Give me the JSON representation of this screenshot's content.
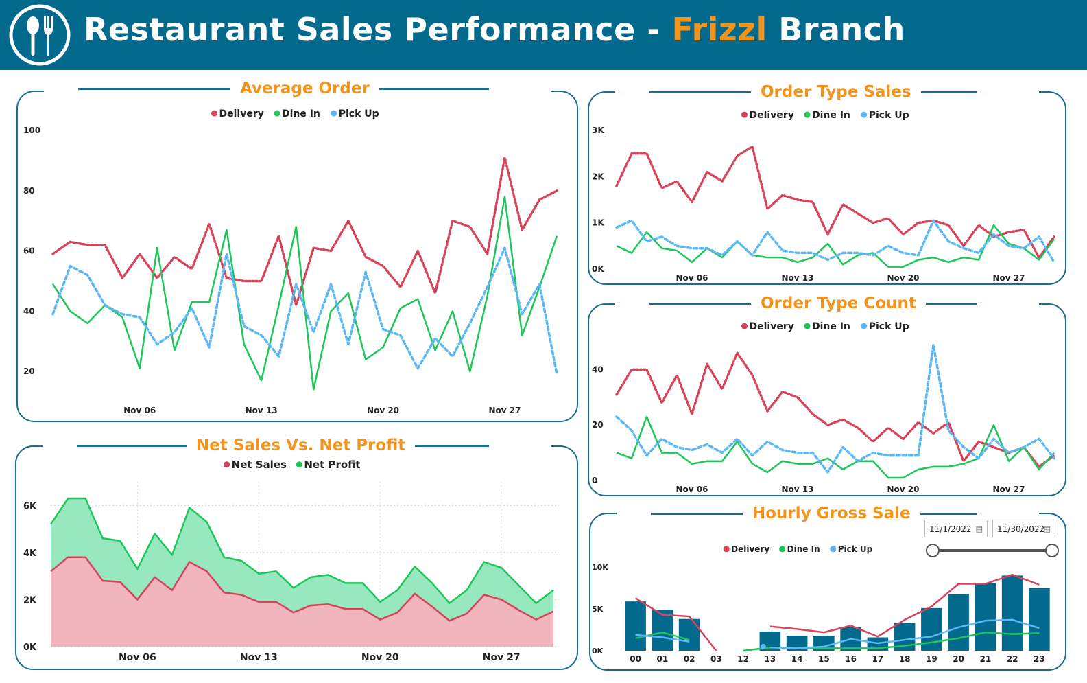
{
  "header": {
    "title_prefix": "Restaurant Sales Performance - ",
    "title_accent": "Frizzl",
    "title_suffix": " Branch",
    "bg_color": "#036a8e",
    "accent_color": "#f2941b",
    "logo_icon": "fork-spoon-icon"
  },
  "colors": {
    "delivery": "#d6435a",
    "dine_in": "#1ec65a",
    "pick_up": "#5bb8f5",
    "net_sales": "#d6435a",
    "net_profit": "#1ec65a",
    "bar": "#036a8e"
  },
  "chart_data": [
    {
      "id": "average_order",
      "type": "line",
      "title": "Average Order",
      "legend": [
        "Delivery",
        "Dine In",
        "Pick Up"
      ],
      "legend_position": "top",
      "ylim": [
        10,
        100
      ],
      "yticks": [
        20,
        40,
        60,
        80,
        100
      ],
      "x_tick_labels": [
        "Nov 06",
        "Nov 13",
        "Nov 20",
        "Nov 27"
      ],
      "x": [
        1,
        2,
        3,
        4,
        5,
        6,
        7,
        8,
        9,
        10,
        11,
        12,
        13,
        14,
        15,
        16,
        17,
        18,
        19,
        20,
        21,
        22,
        23,
        24,
        25,
        26,
        27,
        28,
        29,
        30
      ],
      "series": [
        {
          "name": "Delivery",
          "style": "dotted",
          "values": [
            59,
            63,
            62,
            62,
            51,
            59,
            51,
            58,
            54,
            69,
            51,
            50,
            50,
            65,
            42,
            61,
            60,
            70,
            58,
            55,
            48,
            60,
            46,
            70,
            68,
            59,
            91,
            67,
            77,
            80
          ]
        },
        {
          "name": "Dine In",
          "style": "solid",
          "values": [
            49,
            40,
            36,
            42,
            38,
            21,
            61,
            27,
            43,
            43,
            67,
            29,
            17,
            42,
            68,
            14,
            40,
            46,
            24,
            28,
            41,
            44,
            27,
            40,
            20,
            45,
            78,
            32,
            48,
            65
          ]
        },
        {
          "name": "Pick Up",
          "style": "dashed",
          "values": [
            39,
            55,
            52,
            42,
            39,
            38,
            29,
            33,
            41,
            28,
            59,
            35,
            32,
            25,
            49,
            33,
            49,
            29,
            53,
            34,
            32,
            21,
            31,
            25,
            36,
            48,
            61,
            39,
            49,
            19
          ]
        }
      ]
    },
    {
      "id": "order_type_sales",
      "type": "line",
      "title": "Order Type Sales",
      "legend": [
        "Delivery",
        "Dine In",
        "Pick Up"
      ],
      "legend_position": "top",
      "ylim": [
        0,
        3000
      ],
      "yticks": [
        "0K",
        "1K",
        "2K",
        "3K"
      ],
      "x_tick_labels": [
        "Nov 06",
        "Nov 13",
        "Nov 20",
        "Nov 27"
      ],
      "x": [
        1,
        2,
        3,
        4,
        5,
        6,
        7,
        8,
        9,
        10,
        11,
        12,
        13,
        14,
        15,
        16,
        17,
        18,
        19,
        20,
        21,
        22,
        23,
        24,
        25,
        26,
        27,
        28,
        29,
        30
      ],
      "series": [
        {
          "name": "Delivery",
          "style": "dotted",
          "values": [
            1800,
            2500,
            2500,
            1750,
            1900,
            1450,
            2100,
            1900,
            2450,
            2650,
            1300,
            1600,
            1500,
            1450,
            750,
            1400,
            1200,
            1000,
            1100,
            750,
            1000,
            1050,
            950,
            500,
            950,
            700,
            800,
            850,
            250,
            700
          ]
        },
        {
          "name": "Dine In",
          "style": "solid",
          "values": [
            500,
            350,
            800,
            450,
            400,
            150,
            450,
            250,
            600,
            300,
            250,
            250,
            150,
            250,
            550,
            100,
            300,
            350,
            50,
            50,
            200,
            250,
            150,
            250,
            200,
            950,
            550,
            450,
            200,
            650
          ]
        },
        {
          "name": "Pick Up",
          "style": "dashed",
          "values": [
            900,
            1050,
            600,
            700,
            500,
            450,
            450,
            300,
            600,
            300,
            800,
            400,
            350,
            350,
            200,
            350,
            350,
            300,
            500,
            350,
            300,
            1050,
            600,
            450,
            350,
            750,
            500,
            450,
            700,
            150
          ]
        }
      ]
    },
    {
      "id": "order_type_count",
      "type": "line",
      "title": "Order Type Count",
      "legend": [
        "Delivery",
        "Dine In",
        "Pick Up"
      ],
      "legend_position": "top",
      "ylim": [
        0,
        50
      ],
      "yticks": [
        0,
        20,
        40
      ],
      "x_tick_labels": [
        "Nov 06",
        "Nov 13",
        "Nov 20",
        "Nov 27"
      ],
      "x": [
        1,
        2,
        3,
        4,
        5,
        6,
        7,
        8,
        9,
        10,
        11,
        12,
        13,
        14,
        15,
        16,
        17,
        18,
        19,
        20,
        21,
        22,
        23,
        24,
        25,
        26,
        27,
        28,
        29,
        30
      ],
      "series": [
        {
          "name": "Delivery",
          "style": "dotted",
          "values": [
            31,
            40,
            40,
            28,
            38,
            24,
            42,
            33,
            46,
            38,
            25,
            32,
            30,
            24,
            20,
            22,
            19,
            14,
            19,
            15,
            21,
            17,
            21,
            7,
            14,
            12,
            10,
            12,
            5,
            9
          ]
        },
        {
          "name": "Dine In",
          "style": "solid",
          "values": [
            10,
            8,
            23,
            10,
            10,
            6,
            7,
            7,
            14,
            6,
            3,
            7,
            6,
            6,
            8,
            4,
            7,
            7,
            1,
            1,
            4,
            5,
            5,
            6,
            8,
            20,
            7,
            12,
            4,
            10
          ]
        },
        {
          "name": "Pick Up",
          "style": "dashed",
          "values": [
            23,
            18,
            9,
            15,
            12,
            11,
            13,
            10,
            15,
            9,
            14,
            11,
            10,
            10,
            3,
            12,
            7,
            10,
            9,
            9,
            9,
            49,
            18,
            12,
            8,
            15,
            10,
            12,
            15,
            8
          ]
        }
      ]
    },
    {
      "id": "net_sales_vs_net_profit",
      "type": "area",
      "title": "Net Sales Vs. Net Profit",
      "legend": [
        "Net Sales",
        "Net Profit"
      ],
      "legend_position": "top",
      "ylim": [
        0,
        7000
      ],
      "yticks": [
        "0K",
        "2K",
        "4K",
        "6K"
      ],
      "x_tick_labels": [
        "Nov 06",
        "Nov 13",
        "Nov 20",
        "Nov 27"
      ],
      "x": [
        1,
        2,
        3,
        4,
        5,
        6,
        7,
        8,
        9,
        10,
        11,
        12,
        13,
        14,
        15,
        16,
        17,
        18,
        19,
        20,
        21,
        22,
        23,
        24,
        25,
        26,
        27,
        28,
        29,
        30
      ],
      "series": [
        {
          "name": "Net Sales",
          "values": [
            3200,
            3800,
            3800,
            2800,
            2750,
            2000,
            2950,
            2400,
            3600,
            3200,
            2300,
            2200,
            1900,
            1900,
            1450,
            1750,
            1800,
            1600,
            1600,
            1150,
            1450,
            2250,
            1700,
            1100,
            1400,
            2200,
            2000,
            1550,
            1150,
            1500
          ]
        },
        {
          "name": "Net Profit",
          "values": [
            5200,
            6300,
            6300,
            4600,
            4500,
            3300,
            4800,
            3900,
            5900,
            5300,
            3800,
            3650,
            3100,
            3200,
            2500,
            2950,
            3050,
            2700,
            2700,
            1900,
            2400,
            3400,
            2700,
            1850,
            2400,
            3600,
            3350,
            2600,
            1850,
            2400
          ]
        }
      ]
    },
    {
      "id": "hourly_gross_sale",
      "type": "bar",
      "title": "Hourly Gross Sale",
      "legend": [
        "Delivery",
        "Dine In",
        "Pick Up"
      ],
      "legend_position": "top",
      "ylim": [
        0,
        11000
      ],
      "yticks": [
        "0K",
        "5K",
        "10K"
      ],
      "categories": [
        "00",
        "01",
        "02",
        "03",
        "12",
        "13",
        "14",
        "15",
        "16",
        "17",
        "18",
        "19",
        "20",
        "21",
        "22",
        "23"
      ],
      "values": [
        5900,
        4900,
        3800,
        0,
        0,
        2300,
        1800,
        1800,
        2800,
        1600,
        3300,
        5100,
        6800,
        8100,
        9000,
        7500
      ],
      "series": [
        {
          "name": "Delivery",
          "values": [
            6300,
            4300,
            4100,
            0,
            null,
            2900,
            2600,
            2200,
            3000,
            1700,
            3700,
            5300,
            8000,
            8000,
            9100,
            7900
          ]
        },
        {
          "name": "Dine In",
          "values": [
            1500,
            2200,
            1300,
            null,
            0,
            400,
            300,
            300,
            300,
            300,
            600,
            1000,
            1500,
            2200,
            2000,
            2100
          ]
        },
        {
          "name": "Pick Up",
          "values": [
            1900,
            1600,
            1100,
            null,
            null,
            400,
            300,
            500,
            1400,
            900,
            1300,
            1700,
            2800,
            3600,
            3700,
            2700
          ]
        }
      ]
    }
  ],
  "filters": {
    "start_date": "11/1/2022",
    "end_date": "11/30/2022",
    "calendar_icon": "calendar-icon"
  }
}
